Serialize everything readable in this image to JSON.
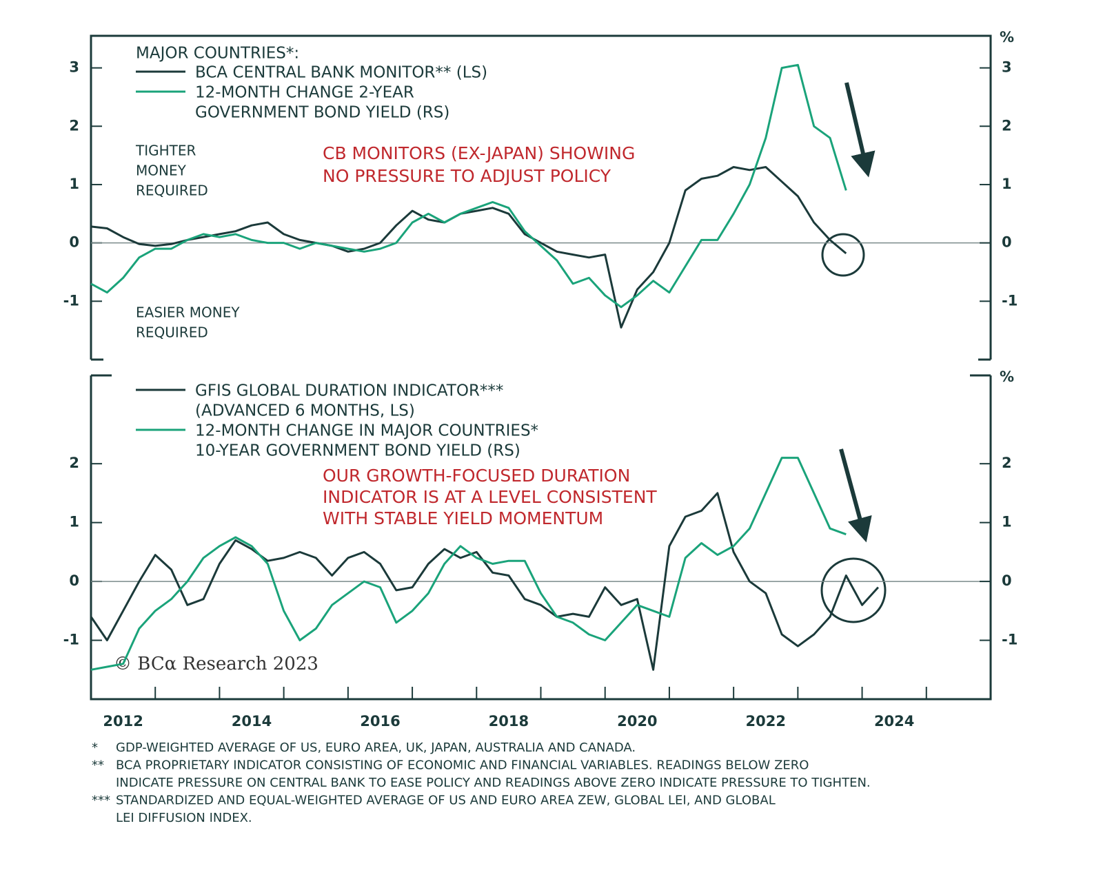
{
  "chart_data": [
    {
      "type": "line",
      "legend_title": "MAJOR COUNTRIES*:",
      "x": [
        2012,
        2012.25,
        2012.5,
        2012.75,
        2013,
        2013.25,
        2013.5,
        2013.75,
        2014,
        2014.25,
        2014.5,
        2014.75,
        2015,
        2015.25,
        2015.5,
        2015.75,
        2016,
        2016.25,
        2016.5,
        2016.75,
        2017,
        2017.25,
        2017.5,
        2017.75,
        2018,
        2018.25,
        2018.5,
        2018.75,
        2019,
        2019.25,
        2019.5,
        2019.75,
        2020,
        2020.25,
        2020.5,
        2020.75,
        2021,
        2021.25,
        2021.5,
        2021.75,
        2022,
        2022.25,
        2022.5,
        2022.75,
        2023,
        2023.25,
        2023.5,
        2023.75,
        2024,
        2024.25
      ],
      "xlim": [
        2012,
        2026
      ],
      "series": [
        {
          "name": [
            "BCA CENTRAL BANK MONITOR** (LS)"
          ],
          "color": "#1b3a3a",
          "values": [
            0.28,
            0.25,
            0.1,
            -0.02,
            -0.05,
            -0.02,
            0.05,
            0.1,
            0.15,
            0.2,
            0.3,
            0.35,
            0.15,
            0.05,
            0,
            -0.05,
            -0.15,
            -0.1,
            0,
            0.3,
            0.55,
            0.4,
            0.35,
            0.5,
            0.55,
            0.6,
            0.5,
            0.15,
            0,
            -0.15,
            -0.2,
            -0.25,
            -0.2,
            -1.45,
            -0.8,
            -0.5,
            0,
            0.9,
            1.1,
            1.15,
            1.3,
            1.25,
            1.3,
            1.05,
            0.8,
            0.35,
            0.05,
            -0.18,
            null,
            null
          ]
        },
        {
          "name": [
            "12-MONTH CHANGE 2-YEAR",
            " GOVERNMENT BOND YIELD (RS)"
          ],
          "color": "#1aa37a",
          "axis": "y2",
          "values": [
            -0.7,
            -0.85,
            -0.6,
            -0.25,
            -0.1,
            -0.1,
            0.05,
            0.15,
            0.1,
            0.15,
            0.05,
            0,
            0,
            -0.1,
            0,
            -0.05,
            -0.1,
            -0.15,
            -0.1,
            0,
            0.35,
            0.5,
            0.35,
            0.5,
            0.6,
            0.7,
            0.6,
            0.2,
            -0.05,
            -0.3,
            -0.7,
            -0.6,
            -0.9,
            -1.1,
            -0.9,
            -0.65,
            -0.85,
            -0.4,
            0.05,
            0.05,
            0.5,
            1.0,
            1.8,
            3.0,
            3.05,
            2.0,
            1.8,
            0.9,
            null,
            null
          ]
        }
      ],
      "ylim": [
        -2,
        3.55
      ],
      "yticks": [
        -1,
        0,
        1,
        2,
        3
      ],
      "y2lim": [
        -2,
        3.55
      ],
      "y2ticks": [
        -1,
        0,
        1,
        2,
        3
      ],
      "y2_unit": "%",
      "annotations": [
        {
          "lines": [
            "TIGHTER",
            "MONEY",
            "REQUIRED"
          ]
        },
        {
          "lines": [
            "EASIER MONEY",
            "REQUIRED"
          ]
        },
        {
          "lines": [
            "CB MONITORS (EX-JAPAN) SHOWING",
            "NO PRESSURE TO ADJUST POLICY"
          ],
          "color": "#c0282d"
        }
      ]
    },
    {
      "type": "line",
      "x": [
        2012,
        2012.25,
        2012.5,
        2012.75,
        2013,
        2013.25,
        2013.5,
        2013.75,
        2014,
        2014.25,
        2014.5,
        2014.75,
        2015,
        2015.25,
        2015.5,
        2015.75,
        2016,
        2016.25,
        2016.5,
        2016.75,
        2017,
        2017.25,
        2017.5,
        2017.75,
        2018,
        2018.25,
        2018.5,
        2018.75,
        2019,
        2019.25,
        2019.5,
        2019.75,
        2020,
        2020.25,
        2020.5,
        2020.75,
        2021,
        2021.25,
        2021.5,
        2021.75,
        2022,
        2022.25,
        2022.5,
        2022.75,
        2023,
        2023.25,
        2023.5,
        2023.75,
        2024,
        2024.25
      ],
      "xlim": [
        2012,
        2026
      ],
      "xticks": [
        {
          "value": 2012.5,
          "label": "2012"
        },
        {
          "value": 2014.5,
          "label": "2014"
        },
        {
          "value": 2016.5,
          "label": "2016"
        },
        {
          "value": 2018.5,
          "label": "2018"
        },
        {
          "value": 2020.5,
          "label": "2020"
        },
        {
          "value": 2022.5,
          "label": "2022"
        },
        {
          "value": 2024.5,
          "label": "2024"
        }
      ],
      "xminor_ticks": [
        2013,
        2014,
        2015,
        2016,
        2017,
        2018,
        2019,
        2020,
        2021,
        2022,
        2023,
        2024,
        2025
      ],
      "series": [
        {
          "name": [
            "GFIS GLOBAL DURATION INDICATOR***",
            " (ADVANCED 6 MONTHS, LS)"
          ],
          "color": "#1b3a3a",
          "values": [
            -0.6,
            -1.0,
            -0.5,
            0,
            0.45,
            0.2,
            -0.4,
            -0.3,
            0.3,
            0.7,
            0.55,
            0.35,
            0.4,
            0.5,
            0.4,
            0.1,
            0.4,
            0.5,
            0.3,
            -0.15,
            -0.1,
            0.3,
            0.55,
            0.4,
            0.5,
            0.15,
            0.1,
            -0.3,
            -0.4,
            -0.6,
            -0.55,
            -0.6,
            -0.1,
            -0.4,
            -0.3,
            -1.5,
            0.6,
            1.1,
            1.2,
            1.5,
            0.5,
            0,
            -0.2,
            -0.9,
            -1.1,
            -0.9,
            -0.6,
            0.1,
            -0.4,
            -0.1
          ]
        },
        {
          "name": [
            "12-MONTH CHANGE IN MAJOR COUNTRIES*",
            " 10-YEAR GOVERNMENT BOND YIELD (RS)"
          ],
          "color": "#1aa37a",
          "axis": "y2",
          "values": [
            -1.5,
            -1.45,
            -1.4,
            -0.8,
            -0.5,
            -0.3,
            0,
            0.4,
            0.6,
            0.75,
            0.6,
            0.3,
            -0.5,
            -1.0,
            -0.8,
            -0.4,
            -0.2,
            0,
            -0.1,
            -0.7,
            -0.5,
            -0.2,
            0.3,
            0.6,
            0.4,
            0.3,
            0.35,
            0.35,
            -0.2,
            -0.6,
            -0.7,
            -0.9,
            -1.0,
            -0.7,
            -0.4,
            -0.5,
            -0.6,
            0.4,
            0.65,
            0.45,
            0.6,
            0.9,
            1.5,
            2.1,
            2.1,
            1.5,
            0.9,
            0.8,
            null,
            null
          ]
        }
      ],
      "ylim": [
        -2,
        3.5
      ],
      "yticks": [
        -1,
        0,
        1,
        2
      ],
      "y2lim": [
        -2,
        3.5
      ],
      "y2ticks": [
        -1,
        0,
        1,
        2
      ],
      "y2_unit": "%",
      "annotations": [
        {
          "lines": [
            "OUR GROWTH-FOCUSED DURATION",
            "INDICATOR IS AT A LEVEL CONSISTENT",
            "WITH STABLE YIELD MOMENTUM"
          ],
          "color": "#c0282d"
        }
      ]
    }
  ],
  "copyright": "© BCα Research 2023",
  "footnotes": [
    {
      "mark": "*",
      "lines": [
        "GDP-WEIGHTED AVERAGE OF US, EURO AREA, UK, JAPAN, AUSTRALIA AND CANADA."
      ]
    },
    {
      "mark": "**",
      "lines": [
        "BCA PROPRIETARY INDICATOR CONSISTING OF ECONOMIC AND FINANCIAL VARIABLES. READINGS BELOW ZERO",
        "INDICATE PRESSURE ON CENTRAL BANK TO EASE POLICY AND READINGS ABOVE ZERO INDICATE PRESSURE TO TIGHTEN."
      ]
    },
    {
      "mark": "***",
      "lines": [
        "STANDARDIZED AND EQUAL-WEIGHTED AVERAGE OF US AND EURO AREA ZEW, GLOBAL LEI, AND GLOBAL",
        "LEI DIFFUSION INDEX."
      ]
    }
  ]
}
